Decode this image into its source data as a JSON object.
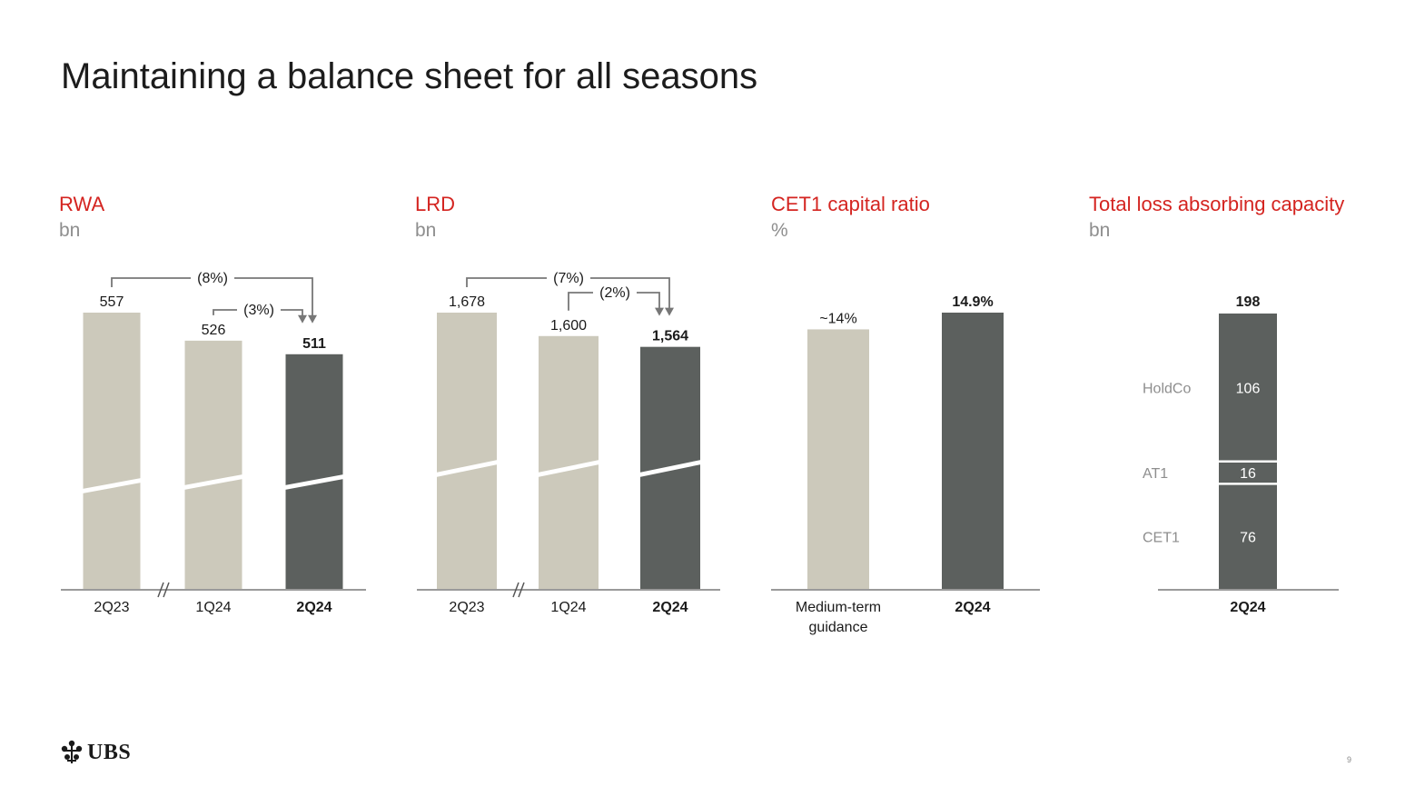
{
  "title": "Maintaining a balance sheet for all seasons",
  "colors": {
    "accent": "#d42420",
    "light_bar": "#ccc9bb",
    "dark_bar": "#5c605e",
    "unit": "#8e8e8e",
    "axis": "#9a9a9a",
    "stack_label": "#8e8e8e"
  },
  "logo": {
    "text": "UBS",
    "icon": "keys-icon"
  },
  "page_number": "9",
  "chart_data": [
    {
      "id": "rwa",
      "type": "bar",
      "title": "RWA",
      "unit": "bn",
      "categories": [
        "2Q23",
        "1Q24",
        "2Q24"
      ],
      "values": [
        557,
        526,
        511
      ],
      "value_labels": [
        "557",
        "526",
        "511"
      ],
      "highlight": [
        false,
        false,
        true
      ],
      "broken_axis": true,
      "annotations": [
        {
          "from": "2Q23",
          "to": "2Q24",
          "label": "(8%)"
        },
        {
          "from": "1Q24",
          "to": "2Q24",
          "label": "(3%)"
        }
      ]
    },
    {
      "id": "lrd",
      "type": "bar",
      "title": "LRD",
      "unit": "bn",
      "categories": [
        "2Q23",
        "1Q24",
        "2Q24"
      ],
      "values": [
        1678,
        1600,
        1564
      ],
      "value_labels": [
        "1,678",
        "1,600",
        "1,564"
      ],
      "highlight": [
        false,
        false,
        true
      ],
      "broken_axis": true,
      "annotations": [
        {
          "from": "2Q23",
          "to": "2Q24",
          "label": "(7%)"
        },
        {
          "from": "1Q24",
          "to": "2Q24",
          "label": "(2%)"
        }
      ]
    },
    {
      "id": "cet1",
      "type": "bar",
      "title": "CET1 capital ratio",
      "unit": "%",
      "categories": [
        "Medium-term guidance",
        "2Q24"
      ],
      "category_lines": [
        [
          "Medium-term",
          "guidance"
        ],
        [
          "2Q24"
        ]
      ],
      "values": [
        14,
        14.9
      ],
      "value_labels": [
        "~14%",
        "14.9%"
      ],
      "highlight": [
        false,
        true
      ],
      "broken_axis": false,
      "annotations": []
    },
    {
      "id": "tlac",
      "type": "bar",
      "stacked": true,
      "title": "Total loss absorbing capacity",
      "unit": "bn",
      "categories": [
        "2Q24"
      ],
      "total": 198,
      "total_label": "198",
      "series": [
        {
          "name": "CET1",
          "values": [
            76
          ],
          "label": "76"
        },
        {
          "name": "AT1",
          "values": [
            16
          ],
          "label": "16"
        },
        {
          "name": "HoldCo",
          "values": [
            106
          ],
          "label": "106"
        }
      ]
    }
  ]
}
